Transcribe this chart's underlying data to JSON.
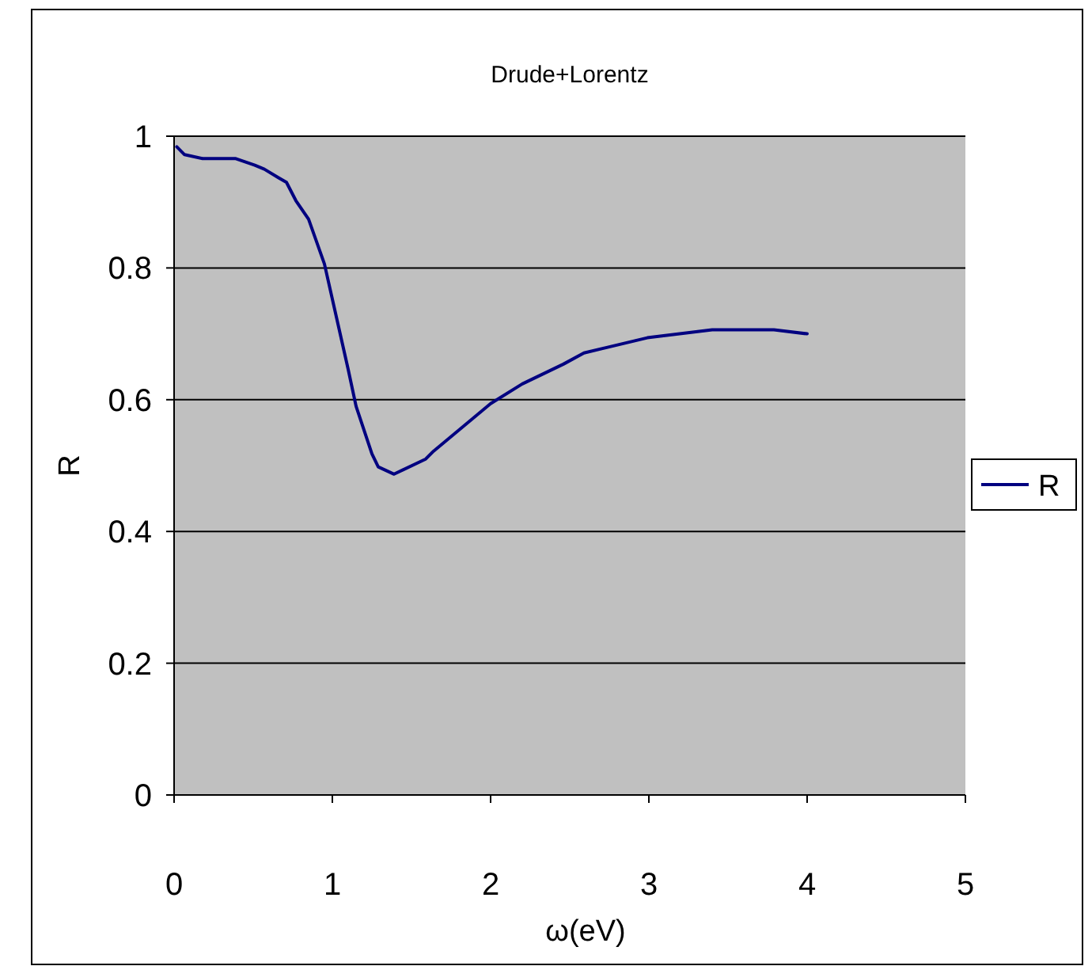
{
  "chart_data": {
    "type": "line",
    "title": "Drude+Lorentz",
    "xlabel": "ω(eV)",
    "ylabel": "R",
    "xlim": [
      0,
      5
    ],
    "xticks": [
      0,
      1,
      2,
      3,
      4,
      5
    ],
    "ylim": [
      0,
      1
    ],
    "yticks": [
      0,
      0.2,
      0.4,
      0.6,
      0.8,
      1
    ],
    "grid": "y",
    "legend": "right",
    "marker": "none",
    "line_style": "solid",
    "series": [
      {
        "name": "R",
        "color": "#000080",
        "x": [
          0.017,
          0.066,
          0.18,
          0.39,
          0.51,
          0.57,
          0.66,
          0.71,
          0.77,
          0.85,
          0.95,
          1.1,
          1.15,
          1.25,
          1.29,
          1.39,
          1.59,
          1.64,
          1.79,
          2.0,
          2.2,
          2.46,
          2.59,
          2.99,
          3.4,
          3.79,
          4.0
        ],
        "values": [
          0.984,
          0.972,
          0.966,
          0.966,
          0.956,
          0.95,
          0.937,
          0.93,
          0.902,
          0.874,
          0.806,
          0.646,
          0.59,
          0.518,
          0.498,
          0.487,
          0.51,
          0.522,
          0.552,
          0.594,
          0.624,
          0.654,
          0.671,
          0.694,
          0.706,
          0.706,
          0.7
        ]
      }
    ]
  }
}
